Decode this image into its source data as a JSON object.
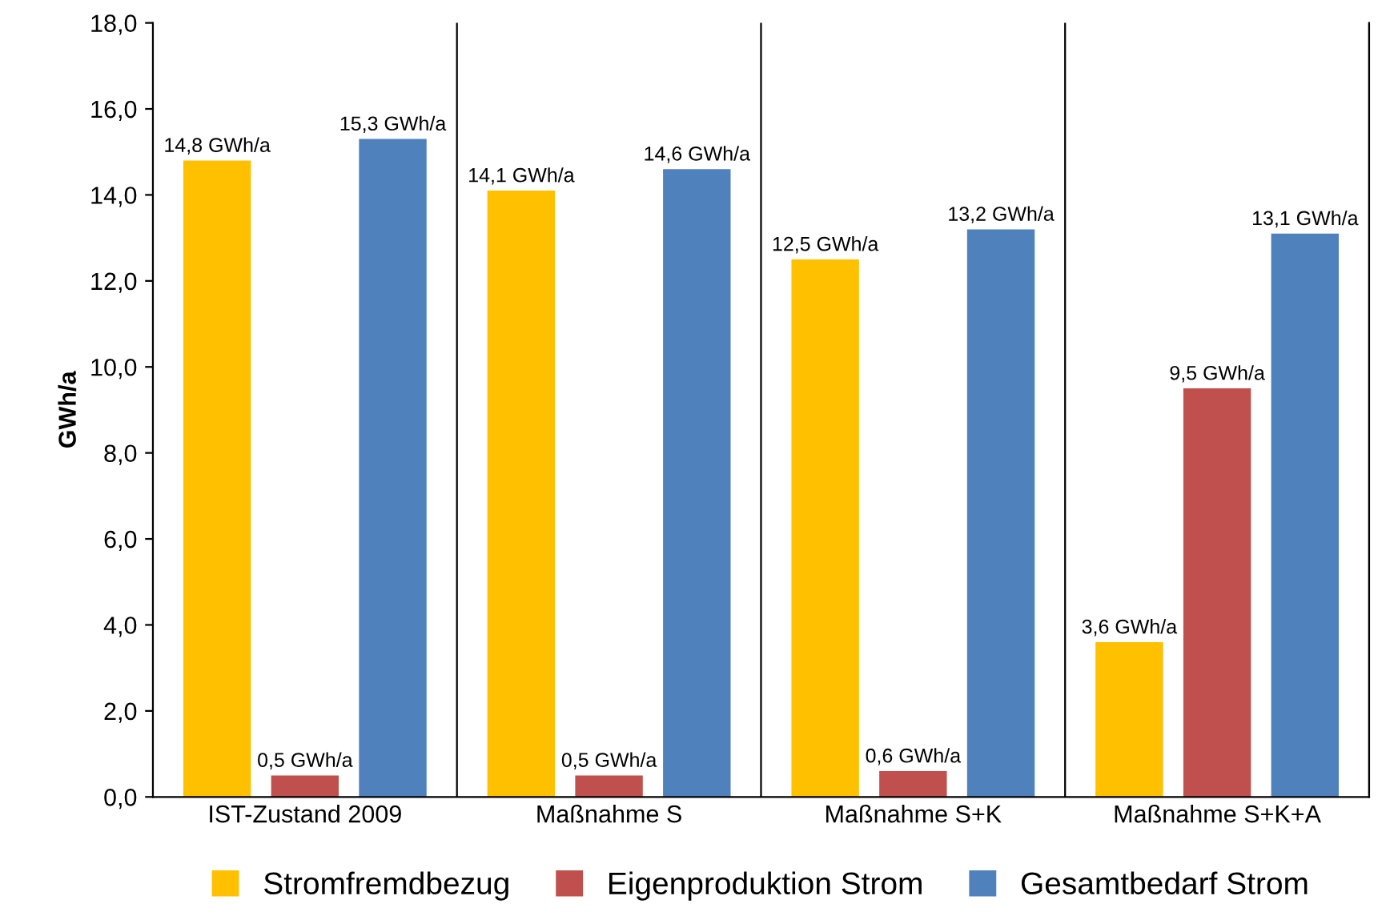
{
  "chart_data": {
    "type": "bar",
    "ylabel": "GWh/a",
    "categories": [
      "IST-Zustand 2009",
      "Maßnahme S",
      "Maßnahme S+K",
      "Maßnahme S+K+A"
    ],
    "series": [
      {
        "name": "Stromfremdbezug",
        "color": "#ffc000",
        "values": [
          14.8,
          14.1,
          12.5,
          3.6
        ],
        "value_labels": [
          "14,8 GWh/a",
          "14,1 GWh/a",
          "12,5 GWh/a",
          "3,6 GWh/a"
        ]
      },
      {
        "name": "Eigenproduktion Strom",
        "color": "#c0504d",
        "values": [
          0.5,
          0.5,
          0.6,
          9.5
        ],
        "value_labels": [
          "0,5 GWh/a",
          "0,5 GWh/a",
          "0,6 GWh/a",
          "9,5 GWh/a"
        ]
      },
      {
        "name": "Gesamtbedarf Strom",
        "color": "#4f81bd",
        "values": [
          15.3,
          14.6,
          13.2,
          13.1
        ],
        "value_labels": [
          "15,3 GWh/a",
          "14,6 GWh/a",
          "13,2 GWh/a",
          "13,1 GWh/a"
        ]
      }
    ],
    "ylim": [
      0,
      18
    ],
    "yticks": [
      {
        "value": 0,
        "label": "0,0"
      },
      {
        "value": 2,
        "label": "2,0"
      },
      {
        "value": 4,
        "label": "4,0"
      },
      {
        "value": 6,
        "label": "6,0"
      },
      {
        "value": 8,
        "label": "8,0"
      },
      {
        "value": 10,
        "label": "10,0"
      },
      {
        "value": 12,
        "label": "12,0"
      },
      {
        "value": 14,
        "label": "14,0"
      },
      {
        "value": 16,
        "label": "16,0"
      },
      {
        "value": 18,
        "label": "18,0"
      }
    ],
    "grid": "x",
    "legend": "bottom"
  }
}
